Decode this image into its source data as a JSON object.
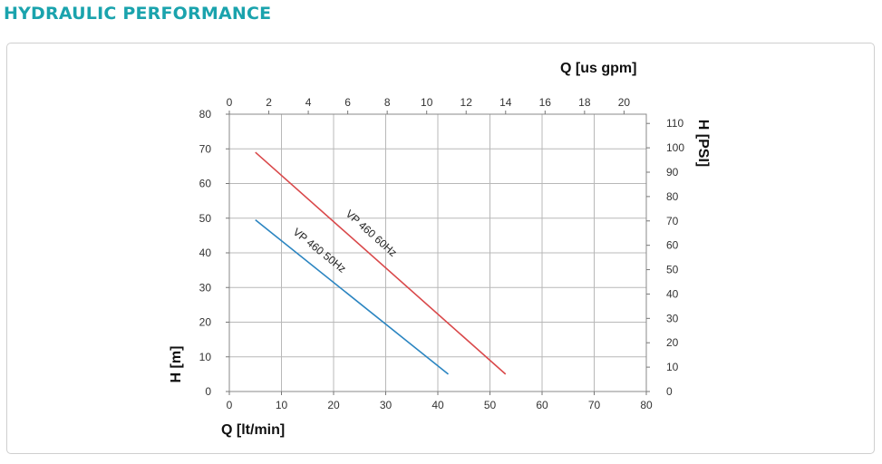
{
  "section_title": "HYDRAULIC PERFORMANCE",
  "chart_data": {
    "type": "line",
    "xlabel": "Q [lt/min]",
    "ylabel": "H [m]",
    "x2label": "Q [us gpm]",
    "y2label": "H [PSI]",
    "xlim": [
      0,
      80
    ],
    "ylim": [
      0,
      80
    ],
    "x2lim": [
      0,
      21.13
    ],
    "y2lim": [
      0,
      113.8
    ],
    "x_ticks": [
      0,
      10,
      20,
      30,
      40,
      50,
      60,
      70,
      80
    ],
    "y_ticks": [
      0,
      10,
      20,
      30,
      40,
      50,
      60,
      70,
      80
    ],
    "x2_ticks": [
      0,
      2,
      4,
      6,
      8,
      10,
      12,
      14,
      16,
      18,
      20
    ],
    "y2_ticks": [
      0,
      10,
      20,
      30,
      40,
      50,
      60,
      70,
      80,
      90,
      100,
      110
    ],
    "grid": true,
    "series": [
      {
        "name": "VP 460 50Hz",
        "color": "#2b85c1",
        "x": [
          5,
          42
        ],
        "y": [
          49.5,
          5
        ]
      },
      {
        "name": "VP 460 60Hz",
        "color": "#d9484a",
        "x": [
          5,
          53
        ],
        "y": [
          69,
          5
        ]
      }
    ]
  }
}
